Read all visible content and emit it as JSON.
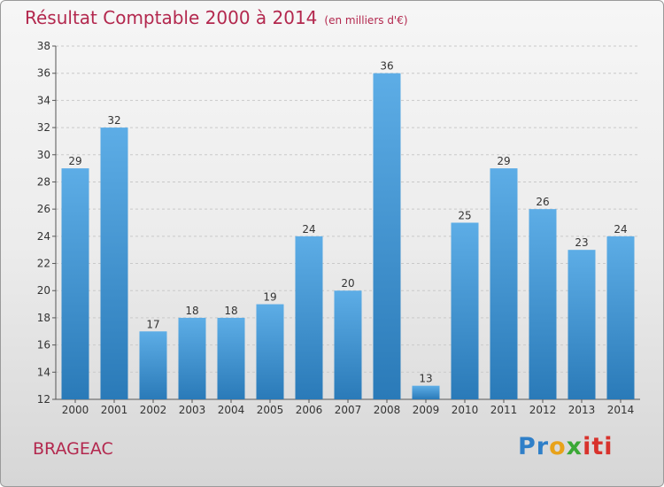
{
  "title": "Résultat Comptable 2000 à 2014",
  "subtitle": "(en milliers d'€)",
  "commune": "BRAGEAC",
  "logo": {
    "text": "Proxiti",
    "parts": [
      "Pr",
      "o",
      "x",
      "iti"
    ],
    "colors": [
      "#2f7fc8",
      "#e8a21a",
      "#3aa836",
      "#d8322c"
    ]
  },
  "colors": {
    "bar_light": "#5dade6",
    "bar_dark": "#2a7ab8",
    "title": "#b3284e",
    "grid": "#c9c9c9"
  },
  "chart_data": {
    "type": "bar",
    "title": "Résultat Comptable 2000 à 2014",
    "subtitle": "(en milliers d'€)",
    "xlabel": "",
    "ylabel": "",
    "categories": [
      "2000",
      "2001",
      "2002",
      "2003",
      "2004",
      "2005",
      "2006",
      "2007",
      "2008",
      "2009",
      "2010",
      "2011",
      "2012",
      "2013",
      "2014"
    ],
    "values": [
      29,
      32,
      17,
      18,
      18,
      19,
      24,
      20,
      36,
      13,
      25,
      29,
      26,
      23,
      24
    ],
    "ylim": [
      12,
      38
    ],
    "yticks": [
      12,
      14,
      16,
      18,
      20,
      22,
      24,
      26,
      28,
      30,
      32,
      34,
      36,
      38
    ],
    "grid": true,
    "data_labels": true
  }
}
